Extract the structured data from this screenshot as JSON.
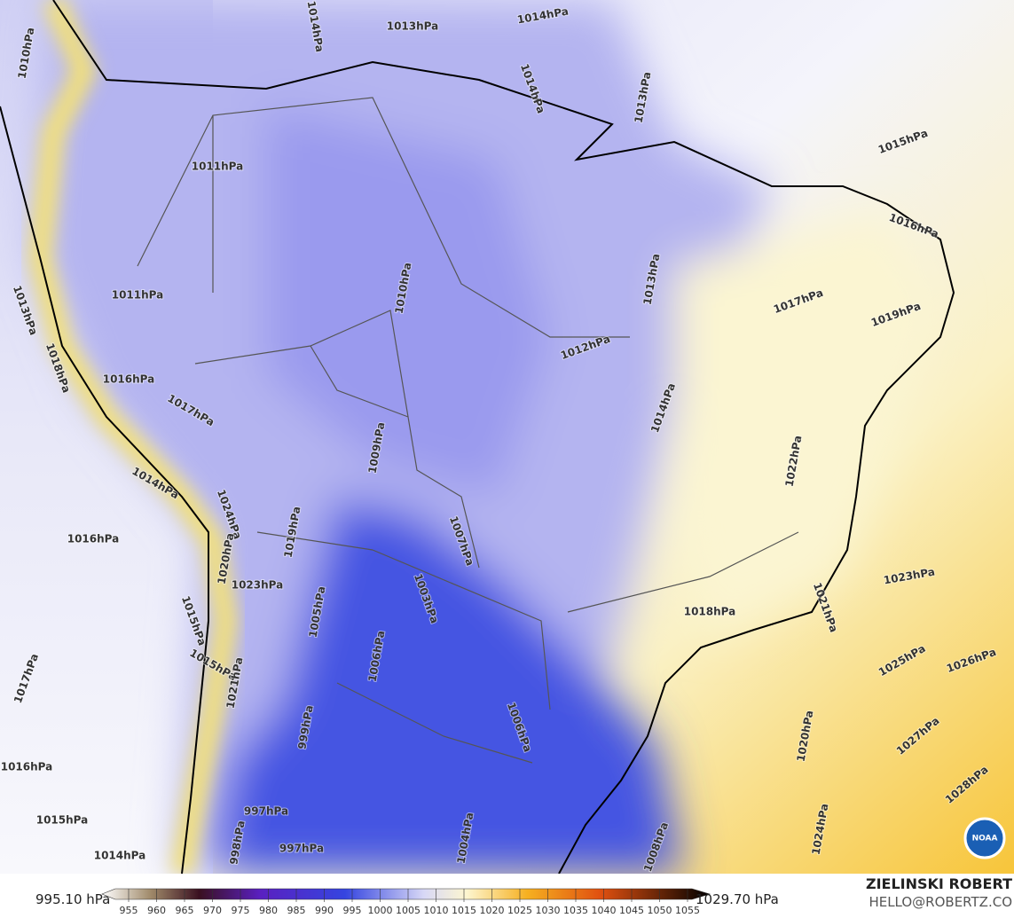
{
  "map": {
    "contour_labels": [
      "1010hPa",
      "1011hPa",
      "1011hPa",
      "1010hPa",
      "1013hPa",
      "1012hPa",
      "1014hPa",
      "1015hPa",
      "1016hPa",
      "1017hPa",
      "1019hPa",
      "1022hPa",
      "1023hPa",
      "1021hPa",
      "1025hPa",
      "1026hPa",
      "1027hPa",
      "1028hPa",
      "1024hPa",
      "1020hPa",
      "1018hPa",
      "1016hPa",
      "1017hPa",
      "1016hPa",
      "1015hPa",
      "1014hPa",
      "1014hPa",
      "1016hPa",
      "1017hPa",
      "1009hPa",
      "1007hPa",
      "1003hPa",
      "1006hPa",
      "999hPa",
      "997hPa",
      "997hPa",
      "998hPa",
      "1008hPa",
      "1006hPa",
      "1004hPa",
      "1014hPa",
      "1013hPa",
      "1014hPa",
      "1014hPa",
      "1013hPa",
      "1023hPa",
      "1024hPa",
      "1020hPa",
      "1019hPa",
      "1015hPa",
      "1015hPa",
      "1021hPa",
      "1018hPa",
      "1013hPa",
      "1005hPa"
    ],
    "logo": "NOAA"
  },
  "colorbar": {
    "min_label": "995.10 hPa",
    "max_label": "1029.70 hPa",
    "ticks": [
      955,
      960,
      965,
      970,
      975,
      980,
      985,
      990,
      995,
      1000,
      1005,
      1010,
      1015,
      1020,
      1025,
      1030,
      1035,
      1040,
      1045,
      1050,
      1055
    ]
  },
  "credits": {
    "author": "ZIELINSKI ROBERT",
    "contact": "HELLO@ROBERTZ.CO"
  }
}
